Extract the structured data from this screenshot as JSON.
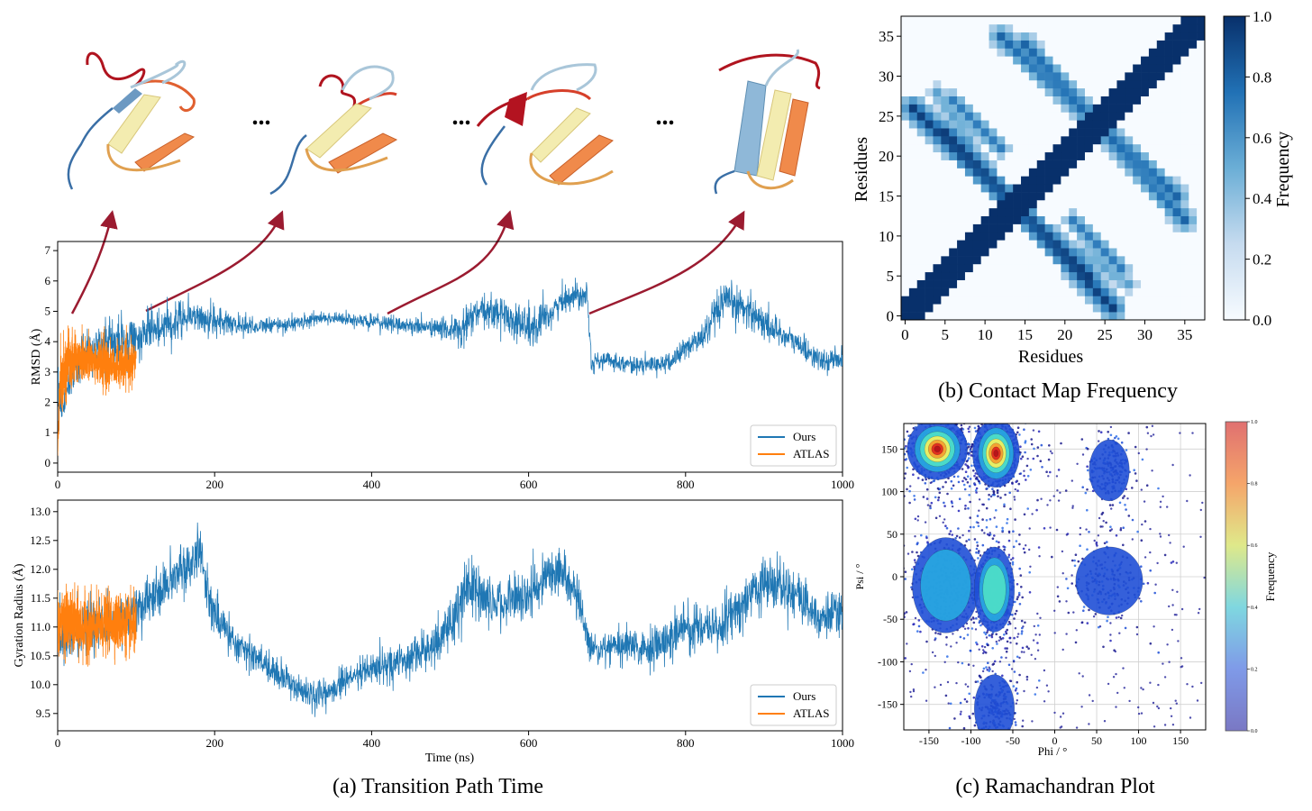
{
  "colors": {
    "ours": "#1f77b4",
    "atlas": "#ff7f0e",
    "arrow": "#9b1b30",
    "contact_max": "#08306b",
    "contact_min": "#f7fbff"
  },
  "protein_panel": {
    "ellipsis": "...",
    "snapshots": [
      "conformation-1",
      "conformation-2",
      "conformation-3",
      "conformation-4"
    ],
    "arrow_start_times_ns": [
      5,
      100,
      420,
      680
    ]
  },
  "chart_data": [
    {
      "id": "rmsd",
      "type": "line",
      "title": "",
      "xlabel": "",
      "ylabel": "RMSD (Å)",
      "xlim": [
        0,
        1000
      ],
      "ylim": [
        -0.3,
        7.3
      ],
      "xticks": [
        0,
        200,
        400,
        600,
        800,
        1000
      ],
      "yticks": [
        0,
        1,
        2,
        3,
        4,
        5,
        6,
        7
      ],
      "legend": [
        "Ours",
        "ATLAS"
      ],
      "legend_position": "lower-right",
      "series": [
        {
          "name": "Ours",
          "x": [
            0,
            5,
            10,
            20,
            40,
            60,
            80,
            100,
            120,
            140,
            155,
            170,
            190,
            220,
            260,
            300,
            340,
            380,
            420,
            460,
            500,
            515,
            530,
            560,
            590,
            610,
            630,
            650,
            675,
            680,
            700,
            740,
            780,
            800,
            820,
            850,
            880,
            900,
            920,
            950,
            975,
            1000
          ],
          "values": [
            2.3,
            1.5,
            2.3,
            3.2,
            3.6,
            3.9,
            4.0,
            4.1,
            4.4,
            4.6,
            4.8,
            4.9,
            4.7,
            4.6,
            4.5,
            4.6,
            4.8,
            4.7,
            4.6,
            4.5,
            4.4,
            4.3,
            4.9,
            5.0,
            4.6,
            4.4,
            5.0,
            5.5,
            5.6,
            3.3,
            3.4,
            3.2,
            3.3,
            3.8,
            4.1,
            5.3,
            5.1,
            4.6,
            4.3,
            3.8,
            3.3,
            3.5
          ],
          "noise": [
            0.9,
            1.2,
            0.9,
            0.9,
            0.9,
            0.9,
            0.9,
            0.8,
            0.7,
            0.8,
            0.9,
            0.6,
            0.6,
            0.5,
            0.3,
            0.3,
            0.25,
            0.25,
            0.3,
            0.3,
            0.4,
            0.9,
            0.6,
            0.6,
            0.8,
            0.9,
            0.5,
            0.5,
            0.5,
            0.35,
            0.3,
            0.3,
            0.35,
            0.45,
            0.6,
            0.7,
            0.7,
            0.6,
            0.5,
            0.45,
            0.4,
            0.4
          ]
        },
        {
          "name": "ATLAS",
          "x": [
            0,
            3,
            10,
            25,
            40,
            60,
            80,
            100
          ],
          "values": [
            0.2,
            2.8,
            3.2,
            3.5,
            3.4,
            3.3,
            3.2,
            3.3
          ],
          "noise": [
            0.1,
            1.3,
            1.1,
            1.0,
            0.9,
            0.9,
            0.8,
            0.7
          ]
        }
      ]
    },
    {
      "id": "gyration",
      "type": "line",
      "title": "",
      "xlabel": "Time (ns)",
      "ylabel": "Gyration Radius (Å)",
      "xlim": [
        0,
        1000
      ],
      "ylim": [
        9.2,
        13.2
      ],
      "xticks": [
        0,
        200,
        400,
        600,
        800,
        1000
      ],
      "yticks": [
        9.5,
        10.0,
        10.5,
        11.0,
        11.5,
        12.0,
        12.5,
        13.0
      ],
      "legend": [
        "Ours",
        "ATLAS"
      ],
      "legend_position": "lower-right",
      "series": [
        {
          "name": "Ours",
          "x": [
            0,
            20,
            60,
            100,
            130,
            160,
            180,
            200,
            230,
            260,
            300,
            330,
            360,
            400,
            440,
            470,
            500,
            520,
            560,
            600,
            640,
            660,
            680,
            720,
            760,
            800,
            840,
            880,
            910,
            940,
            970,
            1000
          ],
          "values": [
            10.8,
            10.9,
            11.0,
            11.3,
            11.6,
            12.0,
            12.3,
            11.2,
            10.7,
            10.4,
            10.0,
            9.75,
            10.0,
            10.3,
            10.4,
            10.6,
            11.0,
            11.7,
            11.4,
            11.6,
            12.0,
            11.6,
            10.6,
            10.7,
            10.6,
            11.0,
            11.0,
            11.5,
            11.9,
            11.6,
            11.2,
            11.2
          ],
          "noise": [
            0.5,
            0.5,
            0.5,
            0.45,
            0.45,
            0.5,
            0.5,
            0.45,
            0.35,
            0.3,
            0.3,
            0.25,
            0.3,
            0.3,
            0.35,
            0.4,
            0.5,
            0.6,
            0.45,
            0.5,
            0.45,
            0.45,
            0.35,
            0.35,
            0.4,
            0.45,
            0.45,
            0.5,
            0.55,
            0.5,
            0.45,
            0.45
          ]
        },
        {
          "name": "ATLAS",
          "x": [
            0,
            10,
            30,
            50,
            70,
            100
          ],
          "values": [
            11.0,
            11.1,
            11.0,
            11.0,
            11.1,
            11.0
          ],
          "noise": [
            0.6,
            0.6,
            0.6,
            0.55,
            0.55,
            0.55
          ]
        }
      ]
    },
    {
      "id": "contact",
      "type": "heatmap",
      "title": "",
      "xlabel": "Residues",
      "ylabel": "Residues",
      "n_residues": 38,
      "xticks": [
        0,
        5,
        10,
        15,
        20,
        25,
        30,
        35
      ],
      "yticks": [
        0,
        5,
        10,
        15,
        20,
        25,
        30,
        35
      ],
      "colorbar_label": "Frequency",
      "colorbar_ticks": [
        "0.0",
        "0.2",
        "0.4",
        "0.6",
        "0.8",
        "1.0"
      ],
      "contact_bands": [
        {
          "from": [
            1,
            26
          ],
          "to": [
            23,
            5
          ],
          "width": 1.6,
          "value": 0.95
        },
        {
          "from": [
            15,
            34
          ],
          "to": [
            35,
            12
          ],
          "width": 1.5,
          "value": 0.8
        },
        {
          "from": [
            6,
            27
          ],
          "to": [
            12,
            21
          ],
          "width": 1.3,
          "value": 0.7
        },
        {
          "from": [
            22,
            8
          ],
          "to": [
            28,
            4
          ],
          "width": 1.3,
          "value": 0.55
        }
      ],
      "diagonal_value": 1.0,
      "diagonal_width": 2
    },
    {
      "id": "ramachandran",
      "type": "scatter",
      "title": "",
      "xlabel": "Phi / °",
      "ylabel": "Psi / °",
      "xlim": [
        -180,
        180
      ],
      "ylim": [
        -180,
        180
      ],
      "xticks": [
        -150,
        -100,
        -50,
        0,
        50,
        100,
        150
      ],
      "yticks": [
        -150,
        -100,
        -50,
        0,
        50,
        100,
        150
      ],
      "colorbar_label": "Frequency",
      "colorbar_ticks": [
        "0.0",
        "0.2",
        "0.4",
        "0.6",
        "0.8",
        "1.0"
      ],
      "clusters": [
        {
          "phi": -140,
          "psi": 150,
          "sphi": 18,
          "spsi": 18,
          "weight": 1.0
        },
        {
          "phi": -70,
          "psi": 145,
          "sphi": 14,
          "spsi": 20,
          "weight": 1.0
        },
        {
          "phi": -130,
          "psi": -10,
          "sphi": 20,
          "spsi": 28,
          "weight": 0.55
        },
        {
          "phi": -72,
          "psi": -15,
          "sphi": 12,
          "spsi": 25,
          "weight": 0.75
        },
        {
          "phi": 65,
          "psi": 125,
          "sphi": 12,
          "spsi": 18,
          "weight": 0.3
        },
        {
          "phi": 65,
          "psi": -5,
          "sphi": 20,
          "spsi": 20,
          "weight": 0.3
        },
        {
          "phi": -72,
          "psi": -155,
          "sphi": 12,
          "spsi": 20,
          "weight": 0.35
        }
      ]
    }
  ],
  "captions": {
    "a": "(a) Transition Path Time",
    "b": "(b) Contact Map Frequency",
    "c": "(c) Ramachandran Plot"
  }
}
